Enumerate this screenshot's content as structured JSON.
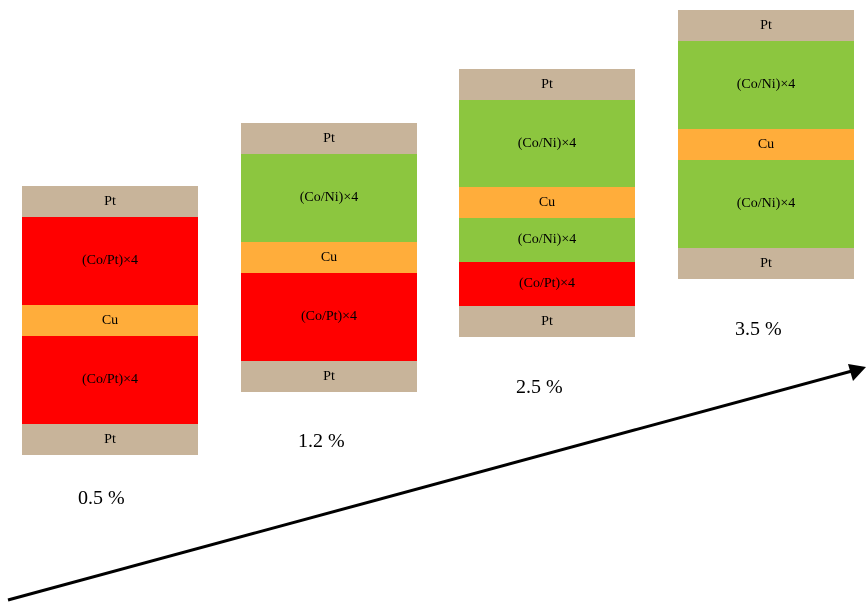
{
  "colors": {
    "Pt": "#c8b49a",
    "CoPt": "#ff0000",
    "Cu": "#ffad3b",
    "CoNi": "#8cc63f"
  },
  "stacks": [
    {
      "percent": "0.5 %",
      "layers": [
        {
          "label": "Pt",
          "material": "Pt"
        },
        {
          "label": "(Co/Pt)×4",
          "material": "CoPt"
        },
        {
          "label": "Cu",
          "material": "Cu"
        },
        {
          "label": "(Co/Pt)×4",
          "material": "CoPt"
        },
        {
          "label": "Pt",
          "material": "Pt"
        }
      ]
    },
    {
      "percent": "1.2 %",
      "layers": [
        {
          "label": "Pt",
          "material": "Pt"
        },
        {
          "label": "(Co/Ni)×4",
          "material": "CoNi"
        },
        {
          "label": "Cu",
          "material": "Cu"
        },
        {
          "label": "(Co/Pt)×4",
          "material": "CoPt"
        },
        {
          "label": "Pt",
          "material": "Pt"
        }
      ]
    },
    {
      "percent": "2.5 %",
      "layers": [
        {
          "label": "Pt",
          "material": "Pt"
        },
        {
          "label": "(Co/Ni)×4",
          "material": "CoNi"
        },
        {
          "label": "Cu",
          "material": "Cu"
        },
        {
          "label": "(Co/Ni)×4",
          "material": "CoNi"
        },
        {
          "label": "(Co/Pt)×4",
          "material": "CoPt"
        },
        {
          "label": "Pt",
          "material": "Pt"
        }
      ]
    },
    {
      "percent": "3.5 %",
      "layers": [
        {
          "label": "Pt",
          "material": "Pt"
        },
        {
          "label": "(Co/Ni)×4",
          "material": "CoNi"
        },
        {
          "label": "Cu",
          "material": "Cu"
        },
        {
          "label": "(Co/Ni)×4",
          "material": "CoNi"
        },
        {
          "label": "Pt",
          "material": "Pt"
        }
      ]
    }
  ]
}
